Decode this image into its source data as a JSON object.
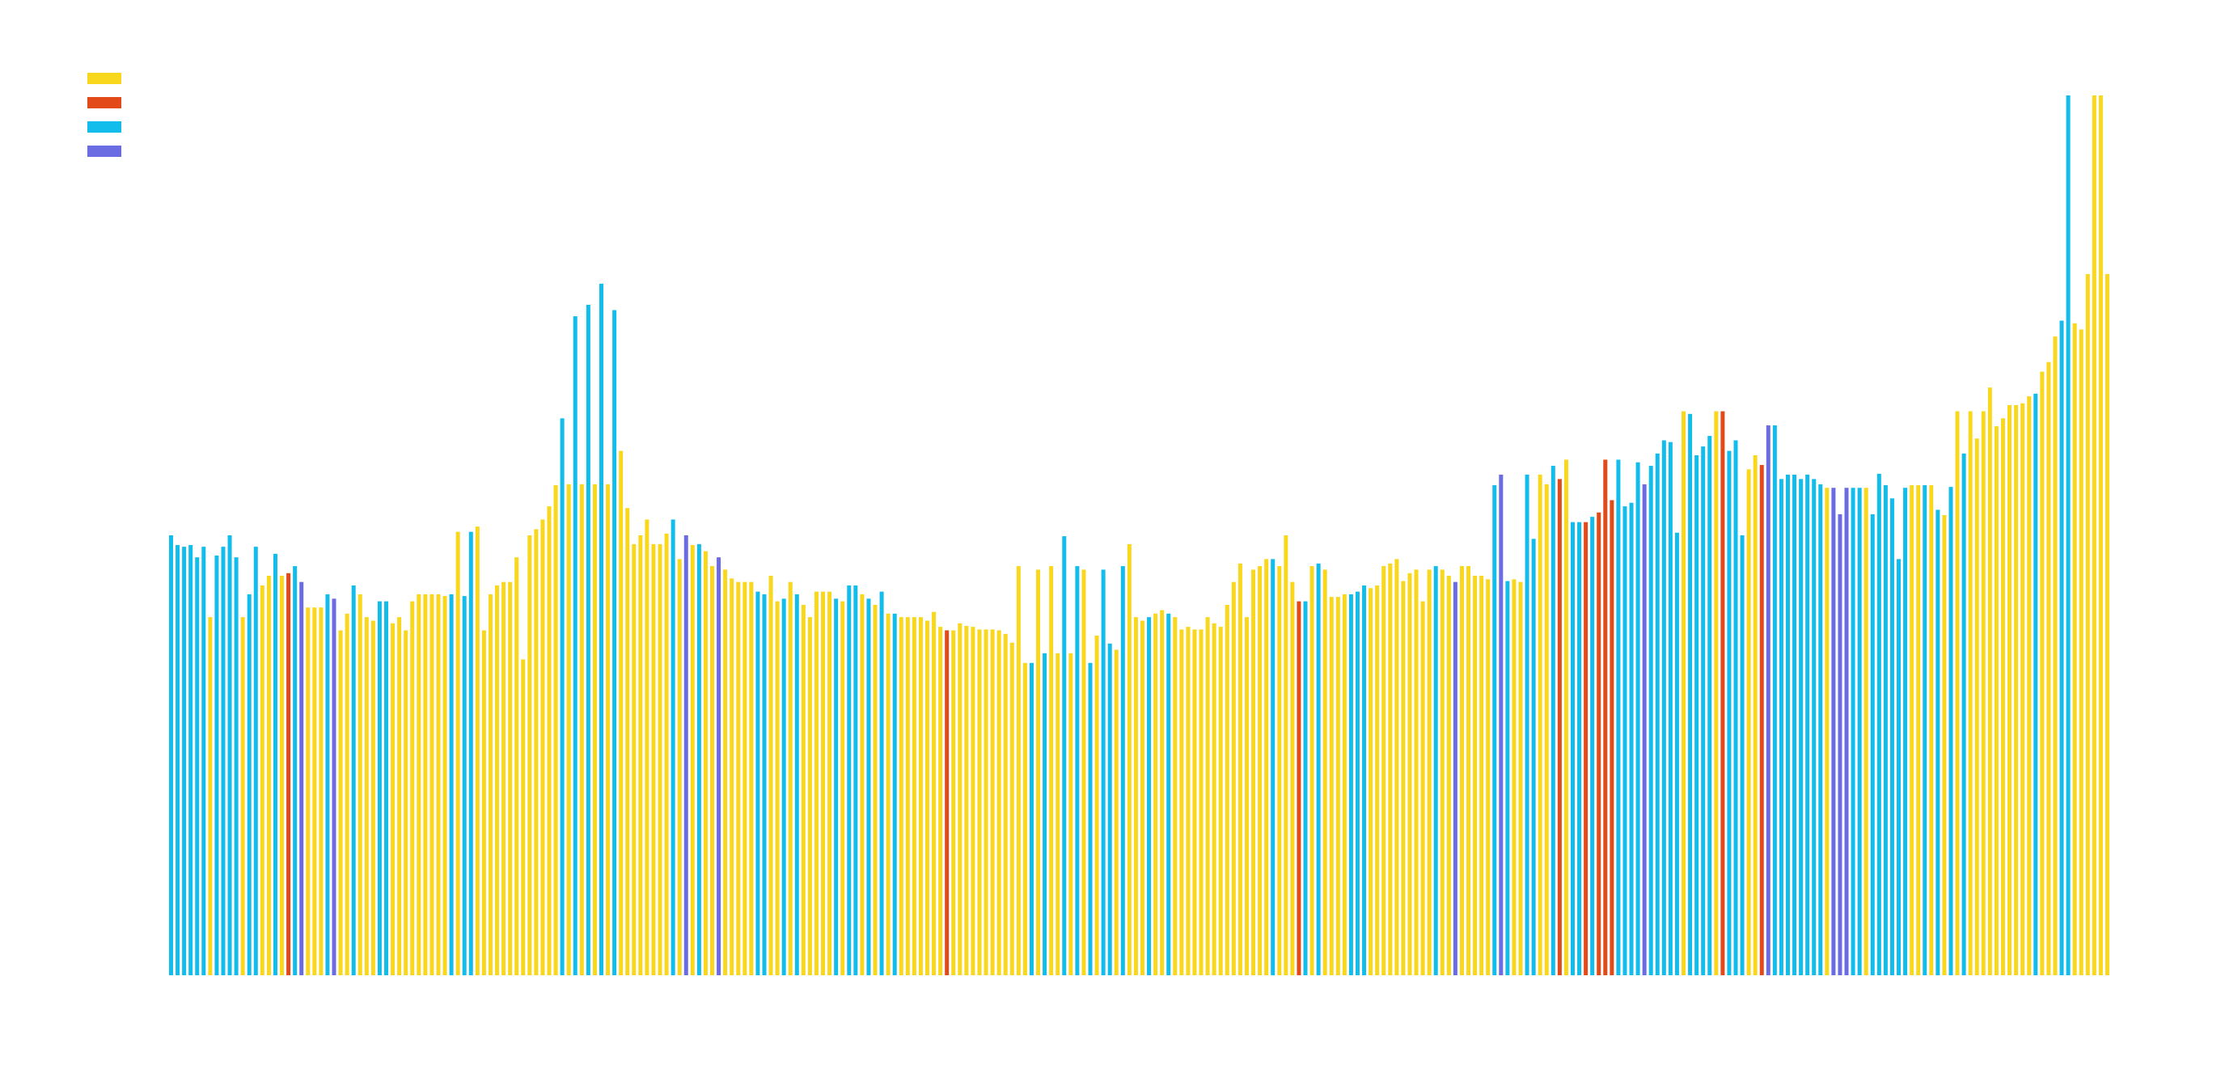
{
  "chart_data": {
    "type": "bar",
    "title": "",
    "xlabel": "",
    "ylabel": "",
    "ylim": [
      0,
      100
    ],
    "grid": false,
    "legend_placement": "top-left",
    "series_colors": [
      "#F9D71C",
      "#E24A1A",
      "#12BDEB",
      "#6B6BE2"
    ],
    "legend": [
      {
        "color": "#F9D71C",
        "label": ""
      },
      {
        "color": "#E24A1A",
        "label": ""
      },
      {
        "color": "#12BDEB",
        "label": ""
      },
      {
        "color": "#6B6BE2",
        "label": ""
      }
    ],
    "values": [
      50.0,
      48.9,
      48.7,
      48.9,
      47.5,
      48.7,
      40.7,
      47.7,
      48.7,
      50.0,
      47.5,
      40.7,
      43.3,
      48.7,
      44.3,
      45.4,
      47.9,
      45.4,
      45.7,
      46.5,
      44.7,
      41.8,
      41.8,
      41.8,
      43.3,
      42.8,
      39.2,
      41.1,
      44.3,
      43.3,
      40.7,
      40.3,
      42.5,
      42.5,
      40.0,
      40.7,
      39.2,
      42.5,
      43.3,
      43.3,
      43.3,
      43.3,
      43.1,
      43.3,
      50.4,
      43.1,
      50.4,
      51.0,
      39.2,
      43.3,
      44.3,
      44.7,
      44.7,
      47.5,
      35.9,
      50.0,
      50.7,
      51.8,
      53.3,
      55.7,
      63.3,
      55.8,
      74.9,
      55.8,
      76.2,
      55.8,
      78.6,
      55.8,
      75.6,
      59.6,
      53.1,
      49.0,
      50.0,
      51.8,
      49.0,
      49.0,
      50.2,
      51.8,
      47.3,
      50.0,
      48.9,
      49.0,
      48.2,
      46.5,
      47.5,
      46.1,
      45.1,
      44.7,
      44.7,
      44.7,
      43.6,
      43.3,
      45.4,
      42.5,
      42.8,
      44.7,
      43.3,
      42.1,
      40.7,
      43.6,
      43.6,
      43.6,
      42.8,
      42.5,
      44.3,
      44.3,
      43.3,
      42.8,
      42.1,
      43.6,
      41.1,
      41.1,
      40.7,
      40.7,
      40.7,
      40.7,
      40.3,
      41.3,
      39.6,
      39.2,
      39.2,
      40.0,
      39.7,
      39.6,
      39.3,
      39.3,
      39.3,
      39.2,
      38.8,
      37.8,
      46.5,
      35.5,
      35.5,
      46.1,
      36.6,
      46.5,
      36.6,
      49.9,
      36.6,
      46.5,
      46.1,
      35.5,
      38.6,
      46.1,
      37.7,
      37.0,
      46.5,
      49.0,
      40.7,
      40.3,
      40.7,
      41.1,
      41.5,
      41.1,
      40.7,
      39.3,
      39.6,
      39.3,
      39.3,
      40.7,
      40.0,
      39.6,
      42.1,
      44.7,
      46.8,
      40.7,
      46.1,
      46.5,
      47.3,
      47.3,
      46.5,
      50.0,
      44.7,
      42.5,
      42.5,
      46.5,
      46.8,
      46.1,
      43.0,
      43.0,
      43.3,
      43.3,
      43.6,
      44.3,
      44.0,
      44.3,
      46.5,
      46.8,
      47.3,
      44.8,
      45.7,
      46.1,
      42.5,
      46.1,
      46.5,
      46.1,
      45.4,
      44.7,
      46.5,
      46.5,
      45.4,
      45.4,
      45.0,
      55.7,
      56.9,
      44.8,
      45.0,
      44.7,
      56.9,
      49.6,
      56.9,
      55.8,
      57.9,
      56.4,
      58.6,
      51.5,
      51.5,
      51.5,
      52.1,
      52.6,
      58.6,
      54.0,
      58.6,
      53.3,
      53.7,
      58.3,
      55.8,
      57.9,
      59.3,
      60.8,
      60.6,
      50.3,
      64.1,
      63.8,
      59.1,
      60.1,
      61.3,
      64.1,
      64.1,
      59.6,
      60.8,
      50.0,
      57.5,
      59.1,
      58.0,
      62.5,
      62.5,
      56.4,
      56.9,
      56.9,
      56.4,
      56.9,
      56.4,
      55.8,
      55.4,
      55.4,
      52.4,
      55.4,
      55.4,
      55.4,
      55.4,
      52.4,
      57.0,
      55.7,
      54.2,
      47.3,
      55.4,
      55.7,
      55.7,
      55.7,
      55.7,
      52.9,
      52.3,
      55.5,
      64.1,
      59.3,
      64.1,
      61.0,
      64.1,
      66.8,
      62.4,
      63.3,
      64.8,
      64.8,
      65.0,
      65.8,
      66.1,
      68.6,
      69.7,
      72.6,
      74.4,
      100.0,
      74.1,
      73.4,
      79.7,
      100.0,
      100.0,
      79.7
    ],
    "colors": [
      "c",
      "c",
      "c",
      "c",
      "c",
      "c",
      "y",
      "c",
      "c",
      "c",
      "c",
      "y",
      "c",
      "c",
      "y",
      "y",
      "c",
      "y",
      "r",
      "c",
      "v",
      "y",
      "y",
      "y",
      "c",
      "v",
      "y",
      "y",
      "c",
      "y",
      "y",
      "y",
      "c",
      "c",
      "y",
      "y",
      "y",
      "y",
      "y",
      "y",
      "y",
      "y",
      "y",
      "c",
      "y",
      "c",
      "c",
      "y",
      "y",
      "y",
      "y",
      "y",
      "y",
      "y",
      "y",
      "y",
      "y",
      "y",
      "y",
      "y",
      "c",
      "y",
      "c",
      "y",
      "c",
      "y",
      "c",
      "y",
      "c",
      "y",
      "y",
      "y",
      "y",
      "y",
      "y",
      "y",
      "y",
      "c",
      "y",
      "v",
      "y",
      "c",
      "y",
      "y",
      "v",
      "y",
      "y",
      "y",
      "y",
      "y",
      "c",
      "c",
      "y",
      "y",
      "c",
      "y",
      "c",
      "y",
      "y",
      "y",
      "y",
      "y",
      "c",
      "y",
      "c",
      "c",
      "y",
      "c",
      "y",
      "c",
      "y",
      "c",
      "y",
      "y",
      "y",
      "y",
      "y",
      "y",
      "y",
      "r",
      "y",
      "y",
      "y",
      "y",
      "y",
      "y",
      "y",
      "y",
      "y",
      "y",
      "y",
      "y",
      "c",
      "y",
      "c",
      "y",
      "y",
      "c",
      "y",
      "c",
      "y",
      "c",
      "y",
      "c",
      "c",
      "y",
      "c",
      "y",
      "y",
      "y",
      "c",
      "y",
      "y",
      "c",
      "y",
      "y",
      "y",
      "y",
      "y",
      "y",
      "y",
      "y",
      "y",
      "y",
      "y",
      "y",
      "y",
      "y",
      "y",
      "c",
      "y",
      "y",
      "y",
      "r",
      "c",
      "y",
      "c",
      "y",
      "y",
      "y",
      "y",
      "c",
      "c",
      "c",
      "y",
      "y",
      "y",
      "y",
      "y",
      "y",
      "y",
      "y",
      "y",
      "y",
      "c",
      "y",
      "y",
      "v",
      "y",
      "y",
      "y",
      "y",
      "y",
      "c",
      "v",
      "c",
      "y",
      "y",
      "c",
      "c",
      "y",
      "y",
      "c",
      "r",
      "y",
      "c",
      "c",
      "r",
      "c",
      "r",
      "r",
      "r",
      "c",
      "c",
      "c",
      "c",
      "v",
      "c",
      "c",
      "c",
      "c",
      "c",
      "y",
      "c",
      "c",
      "c",
      "c",
      "y",
      "r",
      "c",
      "c",
      "c",
      "y",
      "y",
      "r",
      "v",
      "c",
      "c",
      "c",
      "c",
      "c",
      "c",
      "c",
      "c",
      "y",
      "v",
      "v",
      "v",
      "c",
      "c",
      "y",
      "c",
      "c",
      "c",
      "c",
      "c",
      "c",
      "y",
      "y",
      "c",
      "y",
      "c",
      "y",
      "c",
      "y",
      "c",
      "y",
      "y",
      "y",
      "y",
      "y",
      "y",
      "y",
      "y",
      "y",
      "y",
      "c",
      "y",
      "y",
      "y",
      "c",
      "c",
      "y"
    ]
  }
}
